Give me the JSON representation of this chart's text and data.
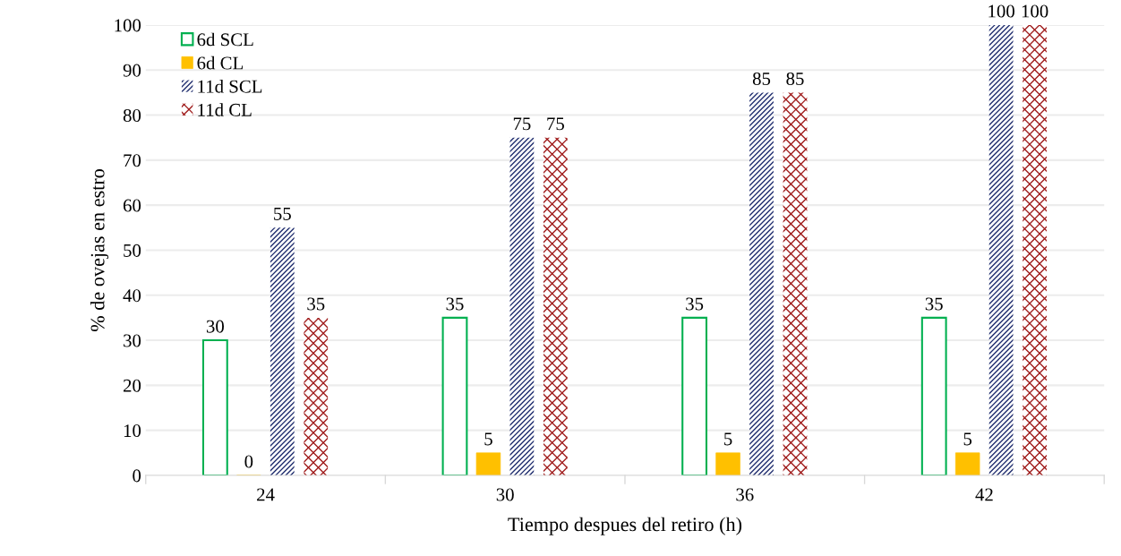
{
  "chart_data": {
    "type": "bar",
    "xlabel": "Tiempo despues del retiro (h)",
    "ylabel": "% de ovejas en estro",
    "categories": [
      "24",
      "30",
      "36",
      "42"
    ],
    "series": [
      {
        "name": "6d SCL",
        "color": "#00b050",
        "values": [
          30,
          35,
          35,
          35
        ]
      },
      {
        "name": "6d CL",
        "color": "#ffc000",
        "values": [
          0,
          5,
          5,
          5
        ]
      },
      {
        "name": "11d SCL",
        "color": "#1f2d6e",
        "values": [
          55,
          75,
          85,
          100
        ]
      },
      {
        "name": "11d CL",
        "color": "#a01c1c",
        "values": [
          35,
          75,
          85,
          100
        ]
      }
    ],
    "ylim": [
      0,
      100
    ],
    "yticks": [
      0,
      10,
      20,
      30,
      40,
      50,
      60,
      70,
      80,
      90,
      100
    ],
    "grid": "y",
    "legend": "top left",
    "data_labels": true
  }
}
